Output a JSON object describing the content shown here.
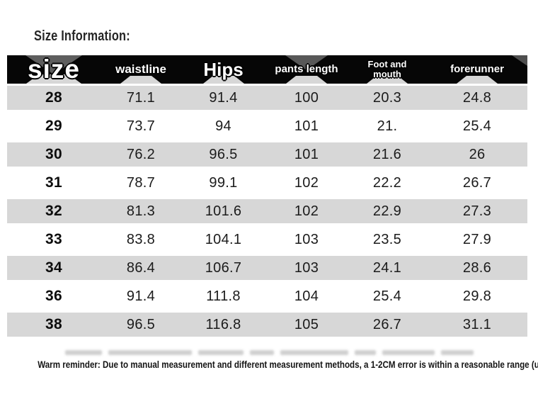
{
  "title": "Size Information:",
  "table": {
    "columns": [
      {
        "label": "size"
      },
      {
        "label": "waistline"
      },
      {
        "label": "Hips"
      },
      {
        "label": "pants length"
      },
      {
        "label": "Foot and mouth"
      },
      {
        "label": "forerunner"
      }
    ],
    "rows": [
      {
        "cells": [
          "28",
          "71.1",
          "91.4",
          "100",
          "20.3",
          "24.8"
        ]
      },
      {
        "cells": [
          "29",
          "73.7",
          "94",
          "101",
          "21.",
          "25.4"
        ]
      },
      {
        "cells": [
          "30",
          "76.2",
          "96.5",
          "101",
          "21.6",
          "26"
        ]
      },
      {
        "cells": [
          "31",
          "78.7",
          "99.1",
          "102",
          "22.2",
          "26.7"
        ]
      },
      {
        "cells": [
          "32",
          "81.3",
          "101.6",
          "102",
          "22.9",
          "27.3"
        ]
      },
      {
        "cells": [
          "33",
          "83.8",
          "104.1",
          "103",
          "23.5",
          "27.9"
        ]
      },
      {
        "cells": [
          "34",
          "86.4",
          "106.7",
          "103",
          "24.1",
          "28.6"
        ]
      },
      {
        "cells": [
          "36",
          "91.4",
          "111.8",
          "104",
          "25.4",
          "29.8"
        ]
      },
      {
        "cells": [
          "38",
          "96.5",
          "116.8",
          "105",
          "26.7",
          "31.1"
        ]
      }
    ]
  },
  "footer": {
    "reminder": "Warm reminder: Due to manual measurement and different measurement methods, a 1-2CM error is within a reasonable range (unit CM)"
  },
  "colors": {
    "header_bg": "#060606",
    "header_text": "#ffffff",
    "row_alt_bg": "#d7d7d7",
    "notch_gray": "#5e5e5e",
    "body_text": "#1b1b1b"
  }
}
